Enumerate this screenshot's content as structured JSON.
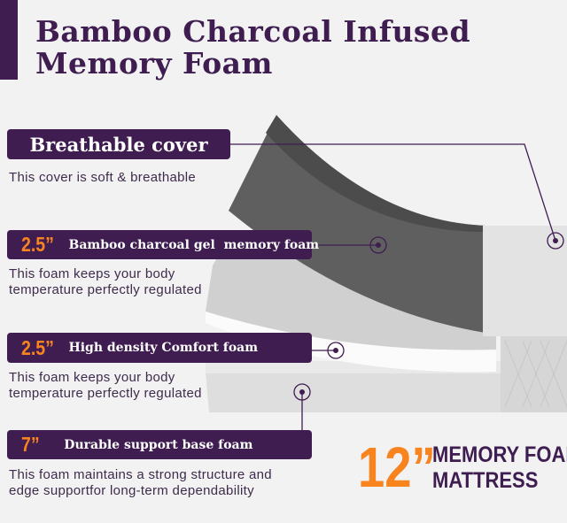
{
  "title": {
    "line1": "Bamboo Charcoal Infused",
    "line2": "Memory Foam"
  },
  "layers": [
    {
      "thickness": "",
      "label": "Breathable cover",
      "description": [
        "This cover is soft & breathable"
      ]
    },
    {
      "thickness": "2.5”",
      "label": "Bamboo charcoal gel  memory foam",
      "description": [
        "This foam keeps your body",
        "temperature perfectly regulated"
      ]
    },
    {
      "thickness": "2.5”",
      "label": "High density Comfort foam",
      "description": [
        "This foam keeps your body",
        "temperature perfectly regulated"
      ]
    },
    {
      "thickness": "7”",
      "label": "Durable support base foam",
      "description": [
        "This foam maintains a strong structure and",
        "edge supportfor long-term dependability"
      ]
    }
  ],
  "total": {
    "size": "12”",
    "line1": "MEMORY FOAM",
    "line2": "MATTRESS"
  },
  "colors": {
    "purple": "#3f1d51",
    "orange": "#f7841e",
    "charcoal": "#5f5f5f"
  }
}
